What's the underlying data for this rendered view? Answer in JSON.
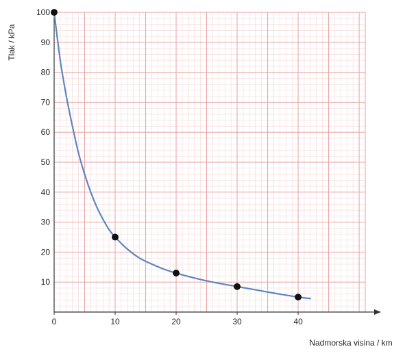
{
  "chart_data": {
    "type": "line",
    "xlabel": "Nadmorska visina / km",
    "ylabel": "Tlak / kPa",
    "xlim": [
      0,
      51
    ],
    "ylim": [
      0,
      100
    ],
    "grid": true,
    "xticks": [
      0,
      10,
      20,
      30,
      40
    ],
    "yticks": [
      10,
      20,
      30,
      40,
      50,
      60,
      70,
      80,
      90,
      100
    ],
    "xtick_labels": [
      "0",
      "10",
      "20",
      "30",
      "40"
    ],
    "ytick_labels": [
      "10",
      "20",
      "30",
      "40",
      "50",
      "60",
      "70",
      "80",
      "90",
      "100"
    ],
    "series": [
      {
        "style": "points",
        "points": [
          {
            "x": 0,
            "y": 100
          },
          {
            "x": 10,
            "y": 25
          },
          {
            "x": 20,
            "y": 13
          },
          {
            "x": 30,
            "y": 8.5
          },
          {
            "x": 40,
            "y": 5
          }
        ]
      },
      {
        "style": "curve",
        "points": [
          {
            "x": 0,
            "y": 100
          },
          {
            "x": 1,
            "y": 84
          },
          {
            "x": 2,
            "y": 72
          },
          {
            "x": 3,
            "y": 62
          },
          {
            "x": 4,
            "y": 53
          },
          {
            "x": 5,
            "y": 46
          },
          {
            "x": 6,
            "y": 40
          },
          {
            "x": 7,
            "y": 35
          },
          {
            "x": 8,
            "y": 31
          },
          {
            "x": 9,
            "y": 27.5
          },
          {
            "x": 10,
            "y": 25
          },
          {
            "x": 12,
            "y": 21
          },
          {
            "x": 14,
            "y": 18
          },
          {
            "x": 16,
            "y": 16
          },
          {
            "x": 18,
            "y": 14.3
          },
          {
            "x": 20,
            "y": 13
          },
          {
            "x": 22.5,
            "y": 11.6
          },
          {
            "x": 25,
            "y": 10.4
          },
          {
            "x": 27.5,
            "y": 9.4
          },
          {
            "x": 30,
            "y": 8.5
          },
          {
            "x": 32.5,
            "y": 7.6
          },
          {
            "x": 35,
            "y": 6.7
          },
          {
            "x": 37.5,
            "y": 5.8
          },
          {
            "x": 40,
            "y": 5
          },
          {
            "x": 42,
            "y": 4.5
          }
        ]
      }
    ],
    "colors": {
      "curve": "#5b86bf",
      "points": "#111111",
      "grid_major": "#e8a3a3",
      "grid_minor": "#f5d6d6",
      "axis": "#333333"
    }
  }
}
